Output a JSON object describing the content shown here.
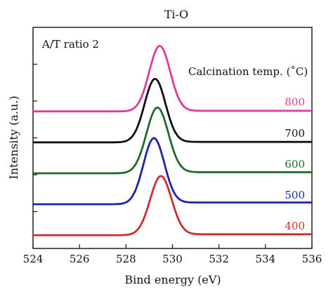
{
  "chart_data": {
    "type": "line",
    "title": "Ti-O",
    "xlabel": "Bind energy (eV)",
    "ylabel": "Intensity (a.u.)",
    "xlim": [
      524,
      536
    ],
    "x_ticks": [
      524,
      526,
      528,
      530,
      532,
      534,
      536
    ],
    "y_ticks_labeled": false,
    "annotations": [
      "A/T ratio 2",
      "Calcination temp. (˚C)"
    ],
    "series": [
      {
        "name": "800",
        "color": "#e0399a",
        "baseline": 0.62,
        "peak_center": 529.45,
        "peak_height": 1.0,
        "peak_width": 0.45,
        "tail_slope": 0.0025
      },
      {
        "name": "700",
        "color": "#111111",
        "baseline": 0.48,
        "peak_center": 529.25,
        "peak_height": 0.97,
        "peak_width": 0.45,
        "tail_slope": 0.002
      },
      {
        "name": "600",
        "color": "#1f6b2a",
        "baseline": 0.34,
        "peak_center": 529.35,
        "peak_height": 1.0,
        "peak_width": 0.47,
        "tail_slope": 0.005
      },
      {
        "name": "500",
        "color": "#1c25a8",
        "baseline": 0.2,
        "peak_center": 529.2,
        "peak_height": 1.0,
        "peak_width": 0.45,
        "tail_slope": 0.008
      },
      {
        "name": "400",
        "color": "#c8302c",
        "baseline": 0.06,
        "peak_center": 529.5,
        "peak_height": 0.9,
        "peak_width": 0.46,
        "tail_slope": 0.004
      }
    ]
  }
}
